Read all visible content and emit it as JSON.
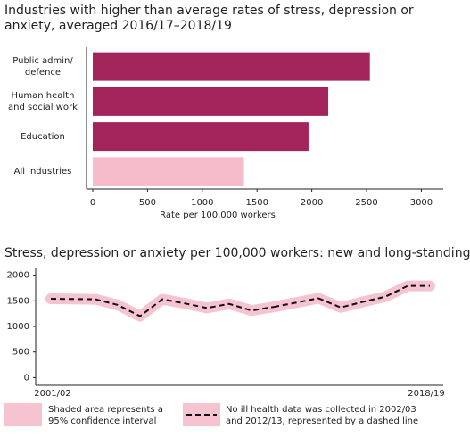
{
  "chart_data": [
    {
      "type": "bar",
      "title": "Industries with higher than average rates of stress, depression or anxiety, averaged 2016/17–2018/19",
      "categories": [
        "Public admin/ defence",
        "Human health and social work",
        "Education",
        "All industries"
      ],
      "values": [
        2530,
        2150,
        1970,
        1380
      ],
      "colors": [
        "#a3245b",
        "#a3245b",
        "#a3245b",
        "#f7bccb"
      ],
      "xlim": [
        0,
        3200
      ],
      "xticks": [
        0,
        500,
        1000,
        1500,
        2000,
        2500,
        3000
      ],
      "xlabel": "Rate per 100,000 workers"
    },
    {
      "type": "line",
      "title": "Stress, depression or anxiety per 100,000 workers: new and long-standing",
      "categories": [
        "2001/02",
        null,
        null,
        null,
        null,
        null,
        null,
        null,
        null,
        null,
        null,
        null,
        null,
        null,
        null,
        null,
        null,
        "2018/19"
      ],
      "values": [
        1540,
        null,
        1530,
        1420,
        1200,
        1530,
        1450,
        1360,
        1440,
        1310,
        1380,
        null,
        1550,
        1370,
        1480,
        1580,
        1790,
        1790
      ],
      "color": "#111111",
      "band_color": "#f5c4d0",
      "ylim": [
        -150,
        2150
      ],
      "yticks": [
        0,
        500,
        1000,
        1500,
        2000
      ],
      "notes": [
        "Shaded area represents a 95% confidence interval",
        "No ill health data was collected in 2002/03 and 2012/13, represented by a dashed line"
      ]
    }
  ]
}
